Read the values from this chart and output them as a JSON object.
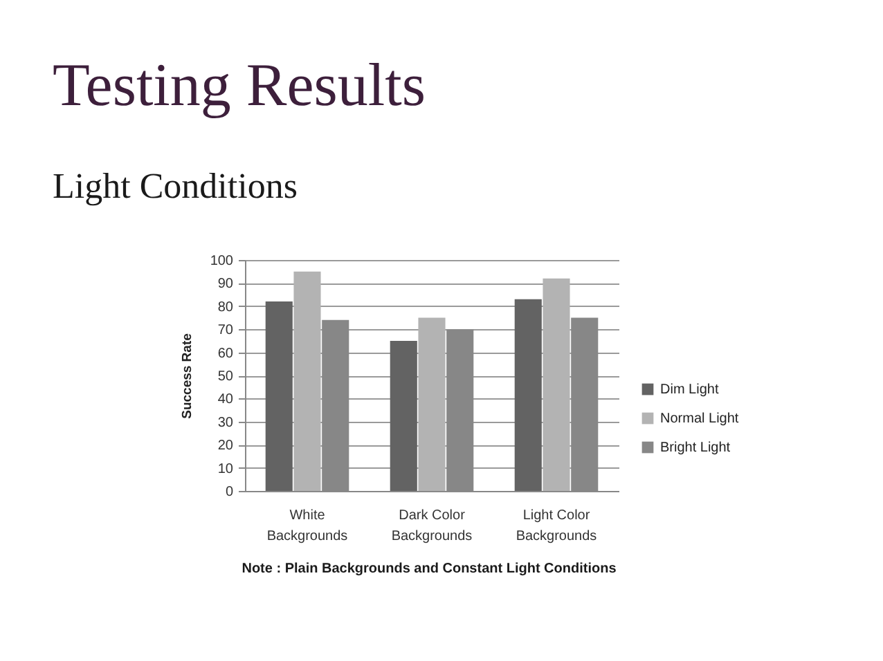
{
  "chart_data": {
    "type": "bar",
    "title": "Testing Results",
    "subtitle": "Light Conditions",
    "ylabel": "Success Rate",
    "annotations": [
      "Note : Plain Backgrounds and Constant Light Conditions"
    ],
    "categories": [
      "White Backgrounds",
      "Dark Color Backgrounds",
      "Light Color Backgrounds"
    ],
    "series": [
      {
        "name": "Dim Light",
        "color": "#636363",
        "values": [
          82,
          65,
          83
        ]
      },
      {
        "name": "Normal Light",
        "color": "#b3b3b3",
        "values": [
          95,
          75,
          92
        ]
      },
      {
        "name": "Bright Light",
        "color": "#878787",
        "values": [
          74,
          70,
          75
        ]
      }
    ],
    "ylim": [
      0,
      100
    ],
    "yticks": [
      0,
      10,
      20,
      30,
      40,
      50,
      60,
      70,
      80,
      90,
      100
    ],
    "grid": "y",
    "legend": "right"
  }
}
